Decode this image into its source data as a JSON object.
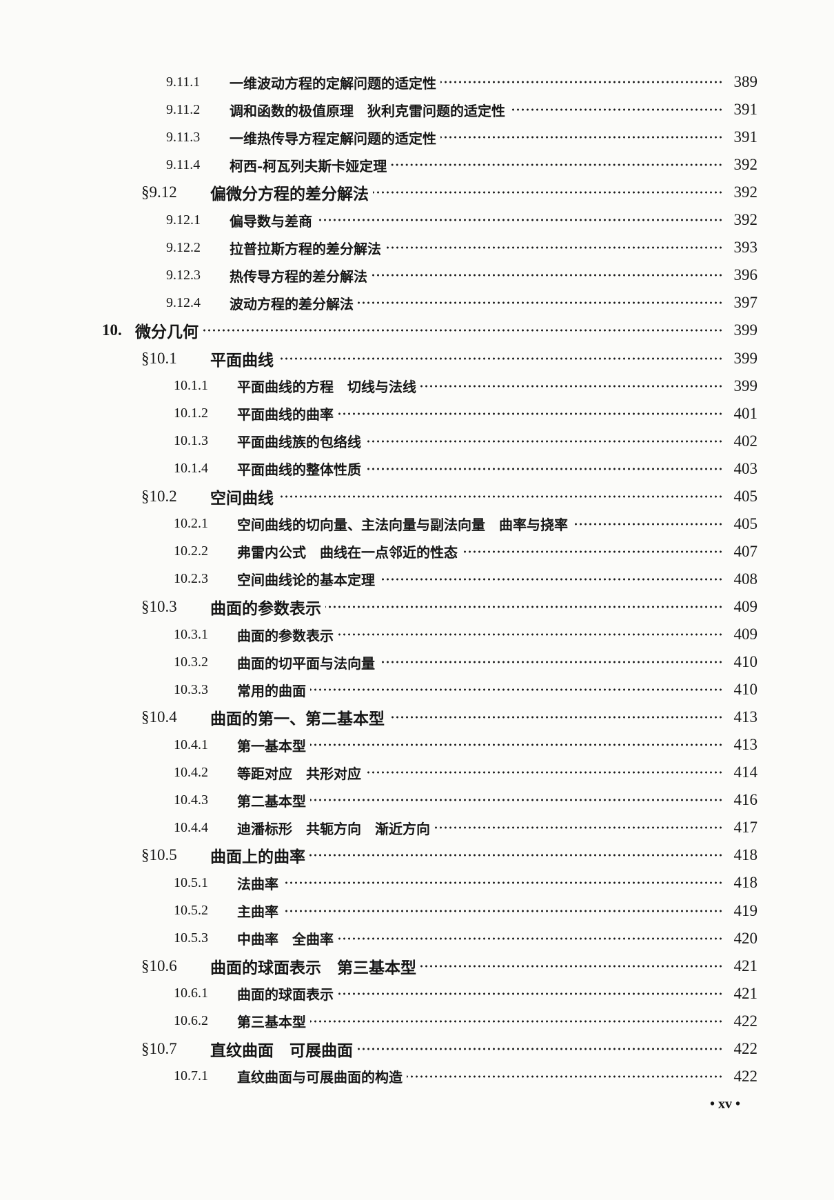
{
  "toc": [
    {
      "level": "sub",
      "number": "9.11.1",
      "title": "一维波动方程的定解问题的适定性",
      "page": "389"
    },
    {
      "level": "sub",
      "number": "9.11.2",
      "title": "调和函数的极值原理　狄利克雷问题的适定性",
      "page": "391"
    },
    {
      "level": "sub",
      "number": "9.11.3",
      "title": "一维热传导方程定解问题的适定性",
      "page": "391"
    },
    {
      "level": "sub",
      "number": "9.11.4",
      "title": "柯西-柯瓦列夫斯卡娅定理",
      "page": "392"
    },
    {
      "level": "sec",
      "number": "§9.12",
      "title": "偏微分方程的差分解法",
      "page": "392"
    },
    {
      "level": "sub",
      "number": "9.12.1",
      "title": "偏导数与差商",
      "page": "392"
    },
    {
      "level": "sub",
      "number": "9.12.2",
      "title": "拉普拉斯方程的差分解法",
      "page": "393"
    },
    {
      "level": "sub",
      "number": "9.12.3",
      "title": "热传导方程的差分解法",
      "page": "396"
    },
    {
      "level": "sub",
      "number": "9.12.4",
      "title": "波动方程的差分解法",
      "page": "397"
    },
    {
      "level": "chap",
      "number": "10.",
      "title": "微分几何",
      "page": "399"
    },
    {
      "level": "sec",
      "number": "§10.1",
      "title": "平面曲线",
      "page": "399"
    },
    {
      "level": "sub10",
      "number": "10.1.1",
      "title": "平面曲线的方程　切线与法线",
      "page": "399"
    },
    {
      "level": "sub10",
      "number": "10.1.2",
      "title": "平面曲线的曲率",
      "page": "401"
    },
    {
      "level": "sub10",
      "number": "10.1.3",
      "title": "平面曲线族的包络线",
      "page": "402"
    },
    {
      "level": "sub10",
      "number": "10.1.4",
      "title": "平面曲线的整体性质",
      "page": "403"
    },
    {
      "level": "sec",
      "number": "§10.2",
      "title": "空间曲线",
      "page": "405"
    },
    {
      "level": "sub10",
      "number": "10.2.1",
      "title": "空间曲线的切向量、主法向量与副法向量　曲率与挠率",
      "page": "405"
    },
    {
      "level": "sub10",
      "number": "10.2.2",
      "title": "弗雷内公式　曲线在一点邻近的性态",
      "page": "407"
    },
    {
      "level": "sub10",
      "number": "10.2.3",
      "title": "空间曲线论的基本定理",
      "page": "408"
    },
    {
      "level": "sec",
      "number": "§10.3",
      "title": "曲面的参数表示",
      "page": "409"
    },
    {
      "level": "sub10",
      "number": "10.3.1",
      "title": "曲面的参数表示",
      "page": "409"
    },
    {
      "level": "sub10",
      "number": "10.3.2",
      "title": "曲面的切平面与法向量",
      "page": "410"
    },
    {
      "level": "sub10",
      "number": "10.3.3",
      "title": "常用的曲面",
      "page": "410"
    },
    {
      "level": "sec",
      "number": "§10.4",
      "title": "曲面的第一、第二基本型",
      "page": "413"
    },
    {
      "level": "sub10",
      "number": "10.4.1",
      "title": "第一基本型",
      "page": "413"
    },
    {
      "level": "sub10",
      "number": "10.4.2",
      "title": "等距对应　共形对应",
      "page": "414"
    },
    {
      "level": "sub10",
      "number": "10.4.3",
      "title": "第二基本型",
      "page": "416"
    },
    {
      "level": "sub10",
      "number": "10.4.4",
      "title": "迪潘标形　共轭方向　渐近方向",
      "page": "417"
    },
    {
      "level": "sec",
      "number": "§10.5",
      "title": "曲面上的曲率",
      "page": "418"
    },
    {
      "level": "sub10",
      "number": "10.5.1",
      "title": "法曲率",
      "page": "418"
    },
    {
      "level": "sub10",
      "number": "10.5.2",
      "title": "主曲率",
      "page": "419"
    },
    {
      "level": "sub10",
      "number": "10.5.3",
      "title": "中曲率　全曲率",
      "page": "420"
    },
    {
      "level": "sec",
      "number": "§10.6",
      "title": "曲面的球面表示　第三基本型",
      "page": "421"
    },
    {
      "level": "sub10",
      "number": "10.6.1",
      "title": "曲面的球面表示",
      "page": "421"
    },
    {
      "level": "sub10",
      "number": "10.6.2",
      "title": "第三基本型",
      "page": "422"
    },
    {
      "level": "sec",
      "number": "§10.7",
      "title": "直纹曲面　可展曲面",
      "page": "422"
    },
    {
      "level": "sub10",
      "number": "10.7.1",
      "title": "直纹曲面与可展曲面的构造",
      "page": "422"
    }
  ],
  "footer": {
    "page_label": "• xv •"
  }
}
